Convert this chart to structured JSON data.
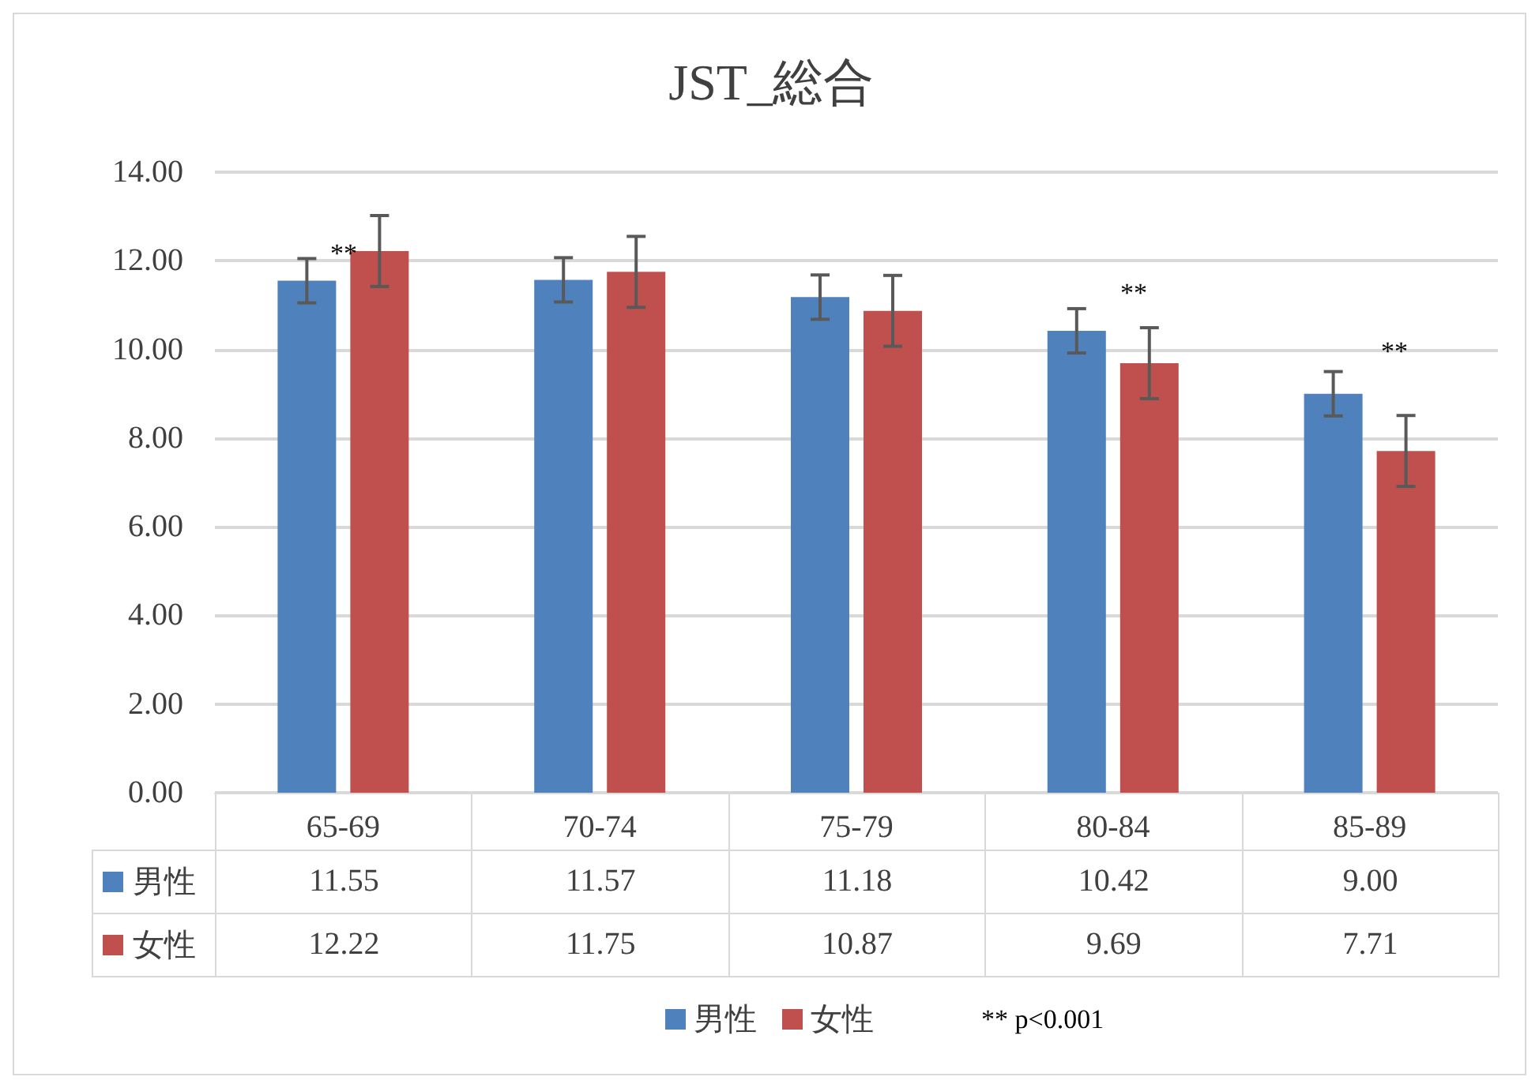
{
  "chart_data": {
    "type": "bar",
    "title": "JST_総合",
    "categories": [
      "65-69",
      "70-74",
      "75-79",
      "80-84",
      "85-89"
    ],
    "series": [
      {
        "name": "男性",
        "color": "#4f81bd",
        "values": [
          11.55,
          11.57,
          11.18,
          10.42,
          9.0
        ],
        "errors": [
          0.5,
          0.5,
          0.5,
          0.5,
          0.5
        ],
        "value_labels": [
          "11.55",
          "11.57",
          "11.18",
          "10.42",
          "9.00"
        ]
      },
      {
        "name": "女性",
        "color": "#c0504d",
        "values": [
          12.22,
          11.75,
          10.87,
          9.69,
          7.71
        ],
        "errors": [
          0.8,
          0.8,
          0.8,
          0.8,
          0.8
        ],
        "value_labels": [
          "12.22",
          "11.75",
          "10.87",
          "9.69",
          "7.71"
        ]
      }
    ],
    "ylim": [
      0,
      14
    ],
    "yticks": [
      {
        "value": 0,
        "label": "0.00"
      },
      {
        "value": 2,
        "label": "2.00"
      },
      {
        "value": 4,
        "label": "4.00"
      },
      {
        "value": 6,
        "label": "6.00"
      },
      {
        "value": 8,
        "label": "8.00"
      },
      {
        "value": 10,
        "label": "10.00"
      },
      {
        "value": 12,
        "label": "12.00"
      },
      {
        "value": 14,
        "label": "14.00"
      }
    ],
    "grid": "y",
    "legend": "bottom",
    "annotations": [
      "**",
      "**",
      "**",
      "** p<0.001"
    ]
  }
}
